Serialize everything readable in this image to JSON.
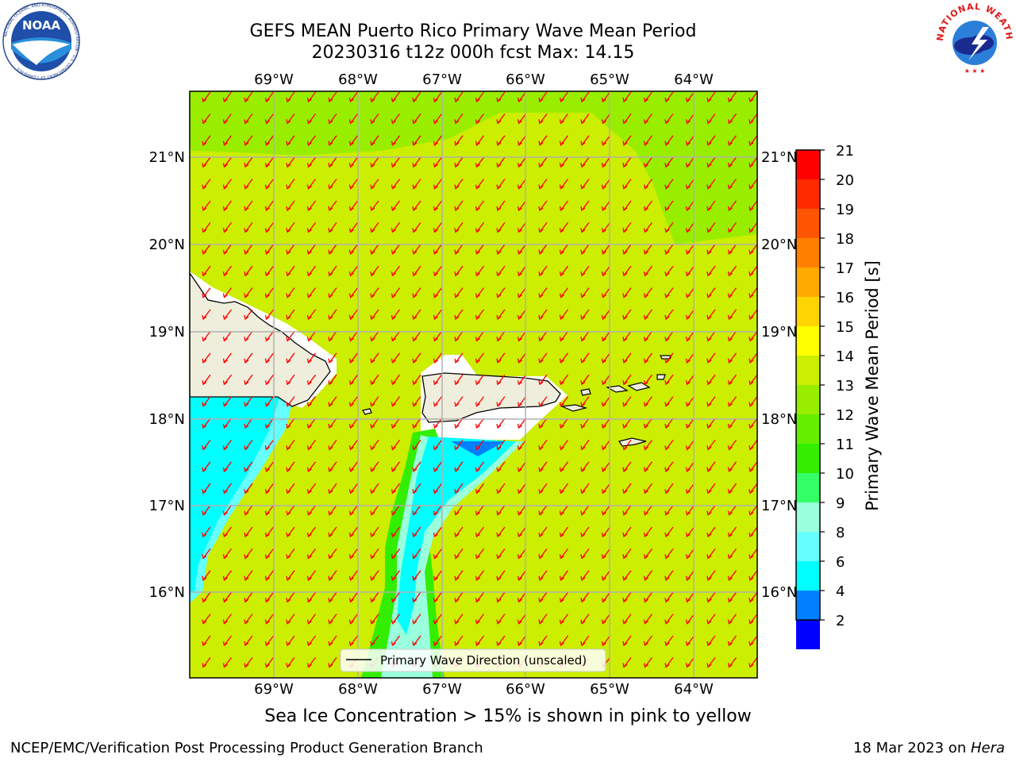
{
  "title": "GEFS MEAN Puerto Rico Primary Wave Mean Period",
  "subtitle": "20230316 t12z 000h fcst   Max: 14.15",
  "lon_labels": [
    "69°W",
    "68°W",
    "67°W",
    "66°W",
    "65°W",
    "64°W"
  ],
  "lat_labels": [
    "21°N",
    "20°N",
    "19°N",
    "18°N",
    "17°N",
    "16°N"
  ],
  "legend_label": "Primary Wave Direction (unscaled)",
  "colorbar": {
    "label": "Primary Wave Mean Period [s]",
    "ticks": [
      "21",
      "20",
      "19",
      "18",
      "17",
      "16",
      "15",
      "14",
      "13",
      "12",
      "11",
      "10",
      "9",
      "8",
      "6",
      "4",
      "2"
    ],
    "colors": [
      "#ff0000",
      "#ff2a00",
      "#ff5500",
      "#ff7f00",
      "#ffaa00",
      "#ffd400",
      "#ffff00",
      "#ccee00",
      "#99ee00",
      "#66ee00",
      "#33ee00",
      "#33ff66",
      "#99ffdd",
      "#66ffff",
      "#00ffff",
      "#0080ff",
      "#0000ff"
    ]
  },
  "colors": {
    "sea_main": "#ccee00",
    "sea_green": "#99ee00",
    "land": "#efeedd",
    "arrow": "#ff0000",
    "cyan": "#00ffff",
    "grid": "#b0b0b0"
  },
  "note": "Sea Ice Concentration > 15% is shown in pink to yellow",
  "footer_left": "NCEP/EMC/Verification Post Processing Product Generation Branch",
  "footer_right_prefix": "18 Mar 2023 on ",
  "footer_right_host": "Hera",
  "noaa_text": "NOAA",
  "noaa_ring_text": "NATIONAL OCEANIC AND ATMOSPHERIC ADMINISTRATION · U.S. DEPARTMENT OF COMMERCE",
  "nws_ring_text": "NATIONAL WEATHER SERVICE"
}
